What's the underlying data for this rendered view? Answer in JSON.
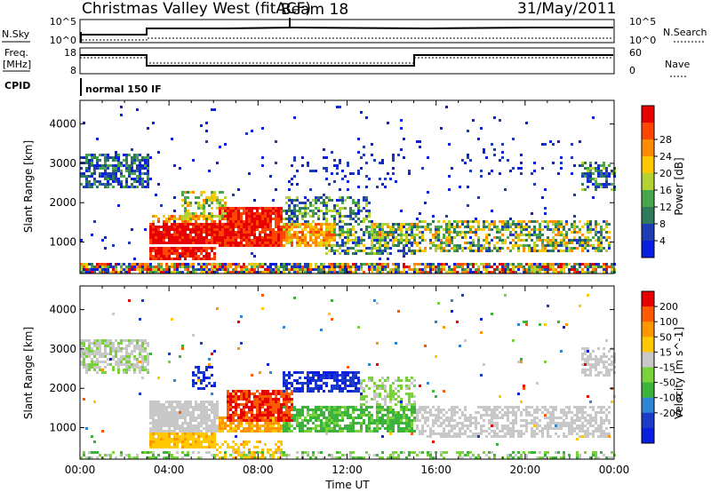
{
  "header": {
    "station": "Christmas Valley West (fitACF)",
    "beam": "Beam 18",
    "date": "31/May/2011"
  },
  "strips": {
    "nsky_label": "N.Sky",
    "nsky_ticks": [
      "10^5",
      "10^0"
    ],
    "nsearch_label": "N.Search",
    "nsearch_ticks": [
      "10^5",
      "10^0"
    ],
    "freq_label_1": "Freq.",
    "freq_label_2": "[MHz]",
    "freq_ticks": [
      "18",
      "8"
    ],
    "nave_label": "Nave",
    "nave_ticks": [
      "60",
      "0"
    ],
    "cpid_label": "CPID",
    "cpid_value": "normal 150 IF"
  },
  "chart_data": [
    {
      "type": "heatmap",
      "name": "power",
      "ylabel": "Slant Range [km]",
      "ylim": [
        200,
        4600
      ],
      "yticks": [
        1000,
        2000,
        3000,
        4000
      ],
      "xlabel": "Time UT",
      "xlim_hours": [
        0,
        24
      ],
      "xticks": [
        "00:00",
        "04:00",
        "08:00",
        "12:00",
        "16:00",
        "20:00",
        "00:00"
      ],
      "colorbar": {
        "label": "Power [dB]",
        "ticks": [
          "4",
          "8",
          "12",
          "16",
          "20",
          "24",
          "28"
        ],
        "colors": [
          "#0a1ee0",
          "#1e3cb4",
          "#2f7a5a",
          "#4aa64a",
          "#b4d232",
          "#ffc800",
          "#ff8c00",
          "#ff4600",
          "#e60000"
        ]
      },
      "blobs": [
        {
          "t0": 0.0,
          "t1": 3.0,
          "r0": 2400,
          "r1": 3300,
          "lv": [
            0.05,
            0.4
          ],
          "d": 0.7
        },
        {
          "t0": 3.0,
          "t1": 6.2,
          "r0": 1000,
          "r1": 1500,
          "lv": [
            0.85,
            1.0
          ],
          "d": 0.95
        },
        {
          "t0": 3.0,
          "t1": 6.0,
          "r0": 550,
          "r1": 900,
          "lv": [
            0.8,
            1.0
          ],
          "d": 0.9
        },
        {
          "t0": 3.0,
          "t1": 6.0,
          "r0": 1500,
          "r1": 1700,
          "lv": [
            0.5,
            0.85
          ],
          "d": 0.6
        },
        {
          "t0": 4.5,
          "t1": 6.5,
          "r0": 1600,
          "r1": 2300,
          "lv": [
            0.3,
            0.7
          ],
          "d": 0.5
        },
        {
          "t0": 6.2,
          "t1": 9.0,
          "r0": 900,
          "r1": 1900,
          "lv": [
            0.8,
            1.0
          ],
          "d": 0.95
        },
        {
          "t0": 9.0,
          "t1": 11.5,
          "r0": 900,
          "r1": 1500,
          "lv": [
            0.5,
            0.85
          ],
          "d": 0.85
        },
        {
          "t0": 9.0,
          "t1": 13.0,
          "r0": 1500,
          "r1": 2200,
          "lv": [
            0.1,
            0.5
          ],
          "d": 0.5
        },
        {
          "t0": 11.0,
          "t1": 15.0,
          "r0": 700,
          "r1": 1500,
          "lv": [
            0.1,
            0.6
          ],
          "d": 0.55
        },
        {
          "t0": 13.0,
          "t1": 15.0,
          "r0": 1000,
          "r1": 1500,
          "lv": [
            0.3,
            0.8
          ],
          "d": 0.55
        },
        {
          "t0": 9.0,
          "t1": 14.5,
          "r0": 2300,
          "r1": 3300,
          "lv": [
            0.0,
            0.2
          ],
          "d": 0.12
        },
        {
          "t0": 15.0,
          "t1": 23.8,
          "r0": 750,
          "r1": 1600,
          "lv": [
            0.15,
            0.75
          ],
          "d": 0.55
        },
        {
          "t0": 16.5,
          "t1": 22.5,
          "r0": 2700,
          "r1": 3700,
          "lv": [
            0.0,
            0.2
          ],
          "d": 0.06
        },
        {
          "t0": 22.5,
          "t1": 24.0,
          "r0": 2300,
          "r1": 3100,
          "lv": [
            0.05,
            0.5
          ],
          "d": 0.55
        },
        {
          "t0": 0.0,
          "t1": 24.0,
          "r0": 200,
          "r1": 480,
          "lv": [
            0.0,
            1.0
          ],
          "d": 0.8
        },
        {
          "t0": 0.0,
          "t1": 24.0,
          "r0": 600,
          "r1": 4500,
          "lv": [
            0.0,
            0.15
          ],
          "d": 0.015
        }
      ]
    },
    {
      "type": "heatmap",
      "name": "velocity",
      "ylabel": "Slant Range [km]",
      "ylim": [
        200,
        4600
      ],
      "yticks": [
        1000,
        2000,
        3000,
        4000
      ],
      "xlabel": "Time UT",
      "xlim_hours": [
        0,
        24
      ],
      "xticks": [
        "00:00",
        "04:00",
        "08:00",
        "12:00",
        "16:00",
        "20:00",
        "00:00"
      ],
      "colorbar": {
        "label": "Velocity [m s^-1]",
        "ticks": [
          "200",
          "100",
          "50",
          "15",
          "-15",
          "-50",
          "-100",
          "-200"
        ],
        "colors": [
          "#0a1ee0",
          "#1a3cc8",
          "#2f86d2",
          "#3cb43c",
          "#7ad23a",
          "#c8c8c8",
          "#ffc800",
          "#ff9600",
          "#ff5a00",
          "#e60000"
        ]
      },
      "blobs": [
        {
          "t0": 0.0,
          "t1": 3.0,
          "r0": 2400,
          "r1": 3300,
          "lv": [
            0.45,
            0.6
          ],
          "d": 0.7
        },
        {
          "t0": 3.0,
          "t1": 6.2,
          "r0": 900,
          "r1": 1700,
          "lv": [
            0.5,
            0.55
          ],
          "d": 0.85
        },
        {
          "t0": 3.0,
          "t1": 6.0,
          "r0": 500,
          "r1": 900,
          "lv": [
            0.6,
            0.72
          ],
          "d": 0.9
        },
        {
          "t0": 6.0,
          "t1": 9.0,
          "r0": 200,
          "r1": 700,
          "lv": [
            0.6,
            0.72
          ],
          "d": 0.4
        },
        {
          "t0": 6.5,
          "t1": 9.5,
          "r0": 1200,
          "r1": 2000,
          "lv": [
            0.8,
            1.0
          ],
          "d": 0.85
        },
        {
          "t0": 6.2,
          "t1": 9.0,
          "r0": 900,
          "r1": 1300,
          "lv": [
            0.65,
            0.8
          ],
          "d": 0.85
        },
        {
          "t0": 9.0,
          "t1": 12.5,
          "r0": 1900,
          "r1": 2500,
          "lv": [
            0.0,
            0.2
          ],
          "d": 0.7
        },
        {
          "t0": 9.0,
          "t1": 15.0,
          "r0": 900,
          "r1": 1600,
          "lv": [
            0.3,
            0.45
          ],
          "d": 0.75
        },
        {
          "t0": 12.5,
          "t1": 15.0,
          "r0": 1600,
          "r1": 2300,
          "lv": [
            0.4,
            0.55
          ],
          "d": 0.5
        },
        {
          "t0": 15.0,
          "t1": 23.8,
          "r0": 750,
          "r1": 1600,
          "lv": [
            0.5,
            0.55
          ],
          "d": 0.6
        },
        {
          "t0": 5.0,
          "t1": 6.0,
          "r0": 2000,
          "r1": 2600,
          "lv": [
            0.0,
            0.2
          ],
          "d": 0.4
        },
        {
          "t0": 22.5,
          "t1": 24.0,
          "r0": 2300,
          "r1": 3100,
          "lv": [
            0.5,
            0.55
          ],
          "d": 0.55
        },
        {
          "t0": 0.0,
          "t1": 24.0,
          "r0": 200,
          "r1": 420,
          "lv": [
            0.35,
            0.55
          ],
          "d": 0.4
        },
        {
          "t0": 0.0,
          "t1": 24.0,
          "r0": 600,
          "r1": 4500,
          "lv": [
            0.0,
            1.0
          ],
          "d": 0.012
        }
      ]
    }
  ]
}
